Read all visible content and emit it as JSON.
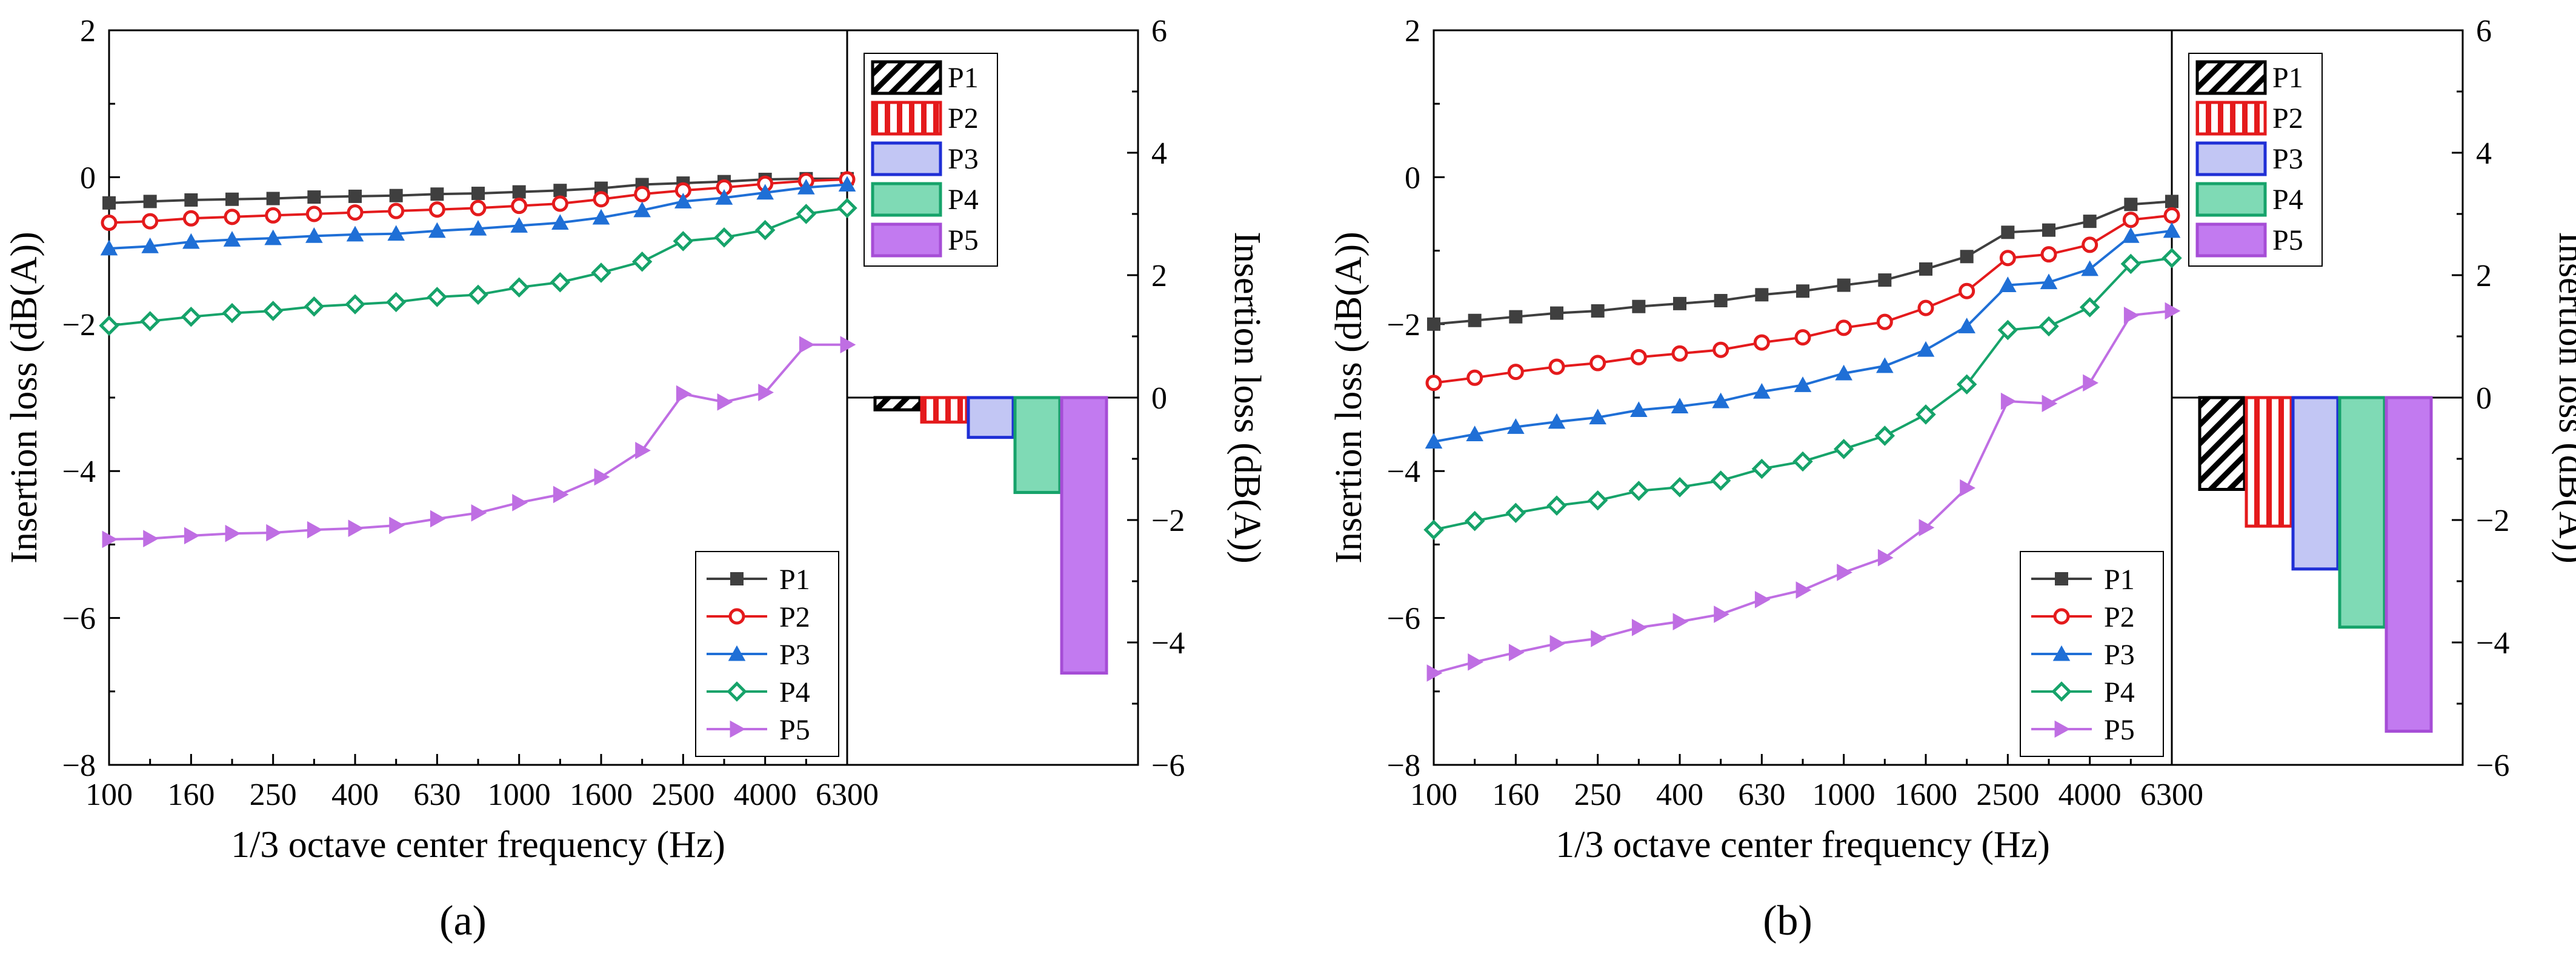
{
  "colors": {
    "P1": "#3f3f3f",
    "P2": "#e41a1c",
    "P3": "#1f6fd6",
    "P4": "#16a36a",
    "P5": "#bf6ee3"
  },
  "chart_data": [
    {
      "type": "line",
      "panel_label": "(a)",
      "xlabel": "1/3 octave center frequency (Hz)",
      "ylabel": "Insertion loss (dB(A))",
      "ylim": [
        -8,
        2
      ],
      "yticks": [
        "−8",
        "−6",
        "−4",
        "−2",
        "0",
        "2"
      ],
      "xtick_labels": [
        "100",
        "160",
        "250",
        "400",
        "630",
        "1000",
        "1600",
        "2500",
        "4000",
        "6300"
      ],
      "x": [
        "100",
        "125",
        "160",
        "200",
        "250",
        "315",
        "400",
        "500",
        "630",
        "800",
        "1000",
        "1250",
        "1600",
        "2000",
        "2500",
        "3150",
        "4000",
        "5000",
        "6300"
      ],
      "legend_position": "bottom-right",
      "series": [
        {
          "name": "P1",
          "marker": "square",
          "values": [
            -0.35,
            -0.33,
            -0.31,
            -0.3,
            -0.29,
            -0.27,
            -0.26,
            -0.25,
            -0.23,
            -0.22,
            -0.2,
            -0.18,
            -0.15,
            -0.1,
            -0.08,
            -0.06,
            -0.03,
            -0.02,
            -0.02
          ]
        },
        {
          "name": "P2",
          "marker": "circle-open",
          "values": [
            -0.62,
            -0.6,
            -0.56,
            -0.54,
            -0.52,
            -0.5,
            -0.48,
            -0.46,
            -0.44,
            -0.42,
            -0.39,
            -0.36,
            -0.3,
            -0.23,
            -0.18,
            -0.14,
            -0.09,
            -0.05,
            -0.03
          ]
        },
        {
          "name": "P3",
          "marker": "triangle-up",
          "values": [
            -0.97,
            -0.94,
            -0.88,
            -0.85,
            -0.83,
            -0.8,
            -0.78,
            -0.77,
            -0.73,
            -0.7,
            -0.66,
            -0.62,
            -0.55,
            -0.45,
            -0.33,
            -0.28,
            -0.21,
            -0.14,
            -0.1
          ]
        },
        {
          "name": "P4",
          "marker": "diamond-open",
          "values": [
            -2.02,
            -1.96,
            -1.9,
            -1.85,
            -1.82,
            -1.76,
            -1.73,
            -1.7,
            -1.63,
            -1.6,
            -1.5,
            -1.43,
            -1.3,
            -1.15,
            -0.87,
            -0.82,
            -0.72,
            -0.5,
            -0.42
          ]
        },
        {
          "name": "P5",
          "marker": "triangle-right",
          "values": [
            -4.93,
            -4.92,
            -4.88,
            -4.85,
            -4.84,
            -4.8,
            -4.78,
            -4.74,
            -4.65,
            -4.57,
            -4.43,
            -4.32,
            -4.08,
            -3.72,
            -2.95,
            -3.06,
            -2.93,
            -2.28,
            -2.28
          ]
        }
      ],
      "inset": {
        "type": "bar",
        "ylabel": "Insertion loss (dB(A))",
        "ylim": [
          -6,
          6
        ],
        "yticks": [
          "−6",
          "−4",
          "−2",
          "0",
          "2",
          "4",
          "6"
        ],
        "legend_position": "top-left",
        "bars": [
          {
            "name": "P1",
            "value": -0.2,
            "pattern": "diagonal"
          },
          {
            "name": "P2",
            "value": -0.4,
            "pattern": "vertical"
          },
          {
            "name": "P3",
            "value": -0.65,
            "pattern": "solid"
          },
          {
            "name": "P4",
            "value": -1.55,
            "pattern": "solid"
          },
          {
            "name": "P5",
            "value": -4.5,
            "pattern": "solid"
          }
        ]
      }
    },
    {
      "type": "line",
      "panel_label": "(b)",
      "xlabel": "1/3 octave center frequency (Hz)",
      "ylabel": "Insertion loss (dB(A))",
      "ylim": [
        -8,
        2
      ],
      "yticks": [
        "−8",
        "−6",
        "−4",
        "−2",
        "0",
        "2"
      ],
      "xtick_labels": [
        "100",
        "160",
        "250",
        "400",
        "630",
        "1000",
        "1600",
        "2500",
        "4000",
        "6300"
      ],
      "x": [
        "100",
        "125",
        "160",
        "200",
        "250",
        "315",
        "400",
        "500",
        "630",
        "800",
        "1000",
        "1250",
        "1600",
        "2000",
        "2500",
        "3150",
        "4000",
        "5000",
        "6300"
      ],
      "legend_position": "bottom-right",
      "series": [
        {
          "name": "P1",
          "marker": "square",
          "values": [
            -2.0,
            -1.95,
            -1.9,
            -1.85,
            -1.82,
            -1.76,
            -1.72,
            -1.68,
            -1.6,
            -1.55,
            -1.47,
            -1.4,
            -1.25,
            -1.08,
            -0.75,
            -0.72,
            -0.6,
            -0.37,
            -0.33
          ]
        },
        {
          "name": "P2",
          "marker": "circle-open",
          "values": [
            -2.8,
            -2.73,
            -2.65,
            -2.58,
            -2.53,
            -2.45,
            -2.4,
            -2.35,
            -2.25,
            -2.18,
            -2.05,
            -1.97,
            -1.78,
            -1.55,
            -1.1,
            -1.05,
            -0.92,
            -0.58,
            -0.52
          ]
        },
        {
          "name": "P3",
          "marker": "triangle-up",
          "values": [
            -3.6,
            -3.5,
            -3.4,
            -3.33,
            -3.27,
            -3.17,
            -3.12,
            -3.05,
            -2.92,
            -2.83,
            -2.67,
            -2.57,
            -2.35,
            -2.03,
            -1.47,
            -1.43,
            -1.25,
            -0.8,
            -0.73
          ]
        },
        {
          "name": "P4",
          "marker": "diamond-open",
          "values": [
            -4.8,
            -4.68,
            -4.57,
            -4.47,
            -4.4,
            -4.27,
            -4.22,
            -4.13,
            -3.97,
            -3.87,
            -3.7,
            -3.52,
            -3.23,
            -2.82,
            -2.08,
            -2.03,
            -1.77,
            -1.18,
            -1.1
          ]
        },
        {
          "name": "P5",
          "marker": "triangle-right",
          "values": [
            -6.75,
            -6.6,
            -6.47,
            -6.35,
            -6.28,
            -6.13,
            -6.05,
            -5.95,
            -5.75,
            -5.62,
            -5.38,
            -5.18,
            -4.77,
            -4.23,
            -3.05,
            -3.08,
            -2.8,
            -1.88,
            -1.82
          ]
        }
      ],
      "inset": {
        "type": "bar",
        "ylabel": "Insertion loss (dB(A))",
        "ylim": [
          -6,
          6
        ],
        "yticks": [
          "−6",
          "−4",
          "−2",
          "0",
          "2",
          "4",
          "6"
        ],
        "legend_position": "top-left",
        "bars": [
          {
            "name": "P1",
            "value": -1.5,
            "pattern": "diagonal"
          },
          {
            "name": "P2",
            "value": -2.1,
            "pattern": "vertical"
          },
          {
            "name": "P3",
            "value": -2.8,
            "pattern": "solid"
          },
          {
            "name": "P4",
            "value": -3.75,
            "pattern": "solid"
          },
          {
            "name": "P5",
            "value": -5.45,
            "pattern": "solid"
          }
        ]
      }
    }
  ]
}
